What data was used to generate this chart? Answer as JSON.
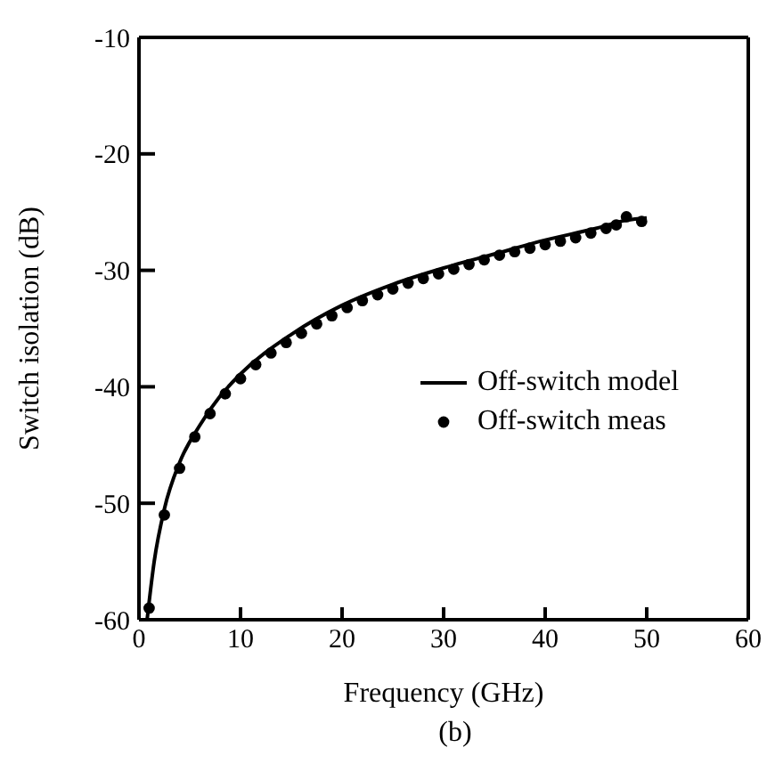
{
  "chart_data": {
    "type": "line",
    "xlabel": "Frequency (GHz)",
    "ylabel": "Switch isolation (dB)",
    "annotations": [
      "(b)"
    ],
    "xlim": [
      0,
      60
    ],
    "xticks": [
      0,
      10,
      20,
      30,
      40,
      50,
      60
    ],
    "ylim": [
      -60,
      -10
    ],
    "yticks": [
      -60,
      -50,
      -40,
      -30,
      -20,
      -10
    ],
    "grid": false,
    "legend": "right",
    "series": [
      {
        "name": "Off-switch model",
        "type": "line",
        "color": "#000000",
        "marker": "none",
        "line_style": "solid",
        "x": [
          0.8,
          1.5,
          2.5,
          4,
          6,
          8,
          10,
          15,
          20,
          25,
          30,
          35,
          40,
          45,
          48,
          50
        ],
        "values": [
          -60,
          -55,
          -50.5,
          -46.5,
          -43.3,
          -40.8,
          -38.9,
          -35.5,
          -33,
          -31.2,
          -29.8,
          -28.6,
          -27.4,
          -26.4,
          -25.7,
          -25.5
        ]
      },
      {
        "name": "Off-switch meas",
        "type": "scatter",
        "color": "#000000",
        "marker": "circle",
        "x": [
          1,
          2.5,
          4,
          5.5,
          7,
          8.5,
          10,
          11.5,
          13,
          14.5,
          16,
          17.5,
          19,
          20.5,
          22,
          23.5,
          25,
          26.5,
          28,
          29.5,
          31,
          32.5,
          34,
          35.5,
          37,
          38.5,
          40,
          41.5,
          43,
          44.5,
          46,
          47,
          48,
          49.5
        ],
        "values": [
          -59,
          -51,
          -47,
          -44.3,
          -42.3,
          -40.6,
          -39.3,
          -38.1,
          -37.1,
          -36.2,
          -35.4,
          -34.6,
          -33.9,
          -33.2,
          -32.6,
          -32.1,
          -31.6,
          -31.1,
          -30.7,
          -30.3,
          -29.9,
          -29.5,
          -29.1,
          -28.7,
          -28.4,
          -28.1,
          -27.8,
          -27.5,
          -27.2,
          -26.8,
          -26.4,
          -26.1,
          -25.4,
          -25.8
        ]
      }
    ]
  }
}
